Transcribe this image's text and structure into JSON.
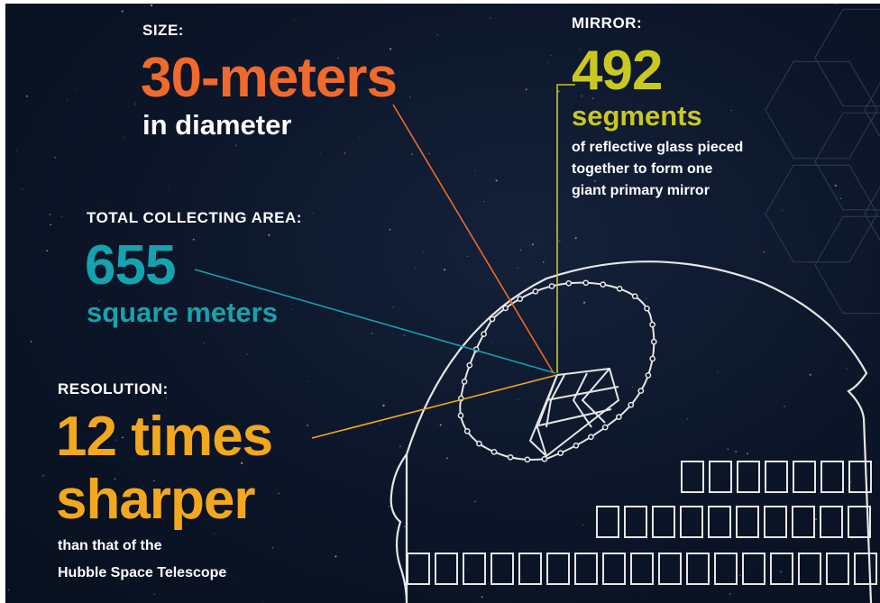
{
  "colors": {
    "background": "#0c1528",
    "size": "#ef6a2c",
    "area": "#15a3ae",
    "mirror": "#c9c821",
    "resolution": "#f2a81e",
    "outline": "#e6e6e6",
    "hexagon": "#2a3650"
  },
  "size": {
    "label": "SIZE:",
    "value": "30-meters",
    "detail": "in diameter"
  },
  "mirror": {
    "label": "MIRROR:",
    "value": "492",
    "unit": "segments",
    "detail_lines": [
      "of reflective glass pieced",
      "together to form one",
      "giant primary mirror"
    ]
  },
  "area": {
    "label": "TOTAL COLLECTING AREA:",
    "value": "655",
    "unit": "square meters"
  },
  "resolution": {
    "label": "RESOLUTION:",
    "value_line1": "12 times",
    "value_line2": "sharper",
    "detail_lines": [
      "than that of the",
      "Hubble Space Telescope"
    ]
  }
}
